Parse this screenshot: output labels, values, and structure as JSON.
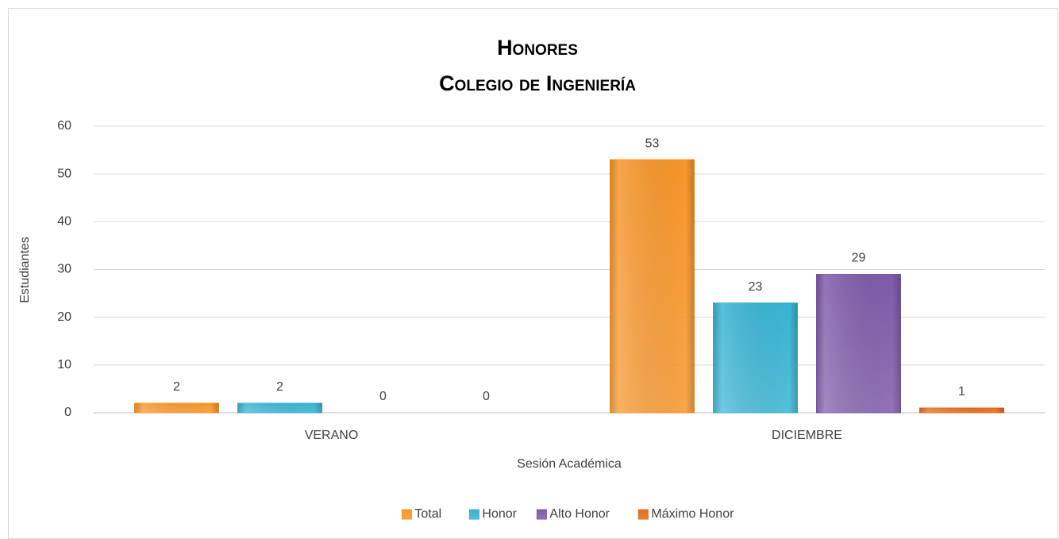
{
  "chart_data": {
    "type": "bar",
    "title": "Honores",
    "subtitle": "Colegio de Ingeniería",
    "x_label": "Sesión Académica",
    "y_label": "Estudiantes",
    "categories": [
      "VERANO",
      "DICIEMBRE"
    ],
    "series": [
      {
        "name": "Total",
        "color": "#f7962a",
        "values": [
          2,
          53
        ]
      },
      {
        "name": "Honor",
        "color": "#38b4d3",
        "values": [
          2,
          23
        ]
      },
      {
        "name": "Alto Honor",
        "color": "#7e5ba9",
        "values": [
          0,
          29
        ]
      },
      {
        "name": "Máximo Honor",
        "color": "#e46c1e",
        "values": [
          0,
          1
        ]
      }
    ],
    "ylim": [
      0,
      60
    ],
    "yticks": [
      0,
      10,
      20,
      30,
      40,
      50,
      60
    ],
    "grid": true,
    "legend": "bottom"
  }
}
